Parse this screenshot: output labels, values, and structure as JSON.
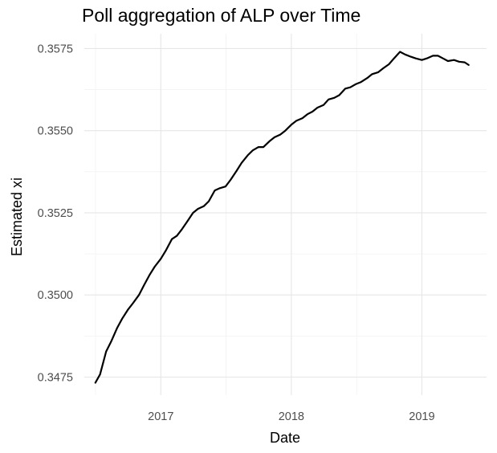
{
  "chart_data": {
    "type": "line",
    "title": "Poll aggregation of ALP over Time",
    "xlabel": "Date",
    "ylabel": "Estimated xi",
    "x_ticks": [
      {
        "label": "2017",
        "value": "2017-01-01"
      },
      {
        "label": "2018",
        "value": "2018-01-01"
      },
      {
        "label": "2019",
        "value": "2019-01-01"
      }
    ],
    "y_ticks": [
      "0.3475",
      "0.3500",
      "0.3525",
      "0.3550",
      "0.3575"
    ],
    "xlim": [
      "2016-06-01",
      "2019-07-01"
    ],
    "ylim": [
      0.34695,
      0.35795
    ],
    "grid": true,
    "series": [
      {
        "color": "#000000",
        "x": [
          "2016-07-02",
          "2016-07-15",
          "2016-08-01",
          "2016-08-15",
          "2016-09-01",
          "2016-09-15",
          "2016-10-01",
          "2016-10-15",
          "2016-11-01",
          "2016-11-15",
          "2016-12-01",
          "2016-12-15",
          "2017-01-01",
          "2017-01-15",
          "2017-02-01",
          "2017-02-15",
          "2017-03-01",
          "2017-03-15",
          "2017-04-01",
          "2017-04-15",
          "2017-05-01",
          "2017-05-15",
          "2017-06-01",
          "2017-06-15",
          "2017-07-01",
          "2017-07-15",
          "2017-08-01",
          "2017-08-15",
          "2017-09-01",
          "2017-09-15",
          "2017-10-01",
          "2017-10-15",
          "2017-11-01",
          "2017-11-15",
          "2017-12-01",
          "2017-12-15",
          "2018-01-01",
          "2018-01-15",
          "2018-02-01",
          "2018-02-15",
          "2018-03-01",
          "2018-03-15",
          "2018-04-01",
          "2018-04-15",
          "2018-05-01",
          "2018-05-15",
          "2018-06-01",
          "2018-06-15",
          "2018-07-01",
          "2018-07-15",
          "2018-08-01",
          "2018-08-15",
          "2018-09-01",
          "2018-09-15",
          "2018-10-01",
          "2018-10-15",
          "2018-11-01",
          "2018-11-15",
          "2018-12-01",
          "2018-12-15",
          "2019-01-01",
          "2019-01-15",
          "2019-02-01",
          "2019-02-15",
          "2019-03-01",
          "2019-03-15",
          "2019-04-01",
          "2019-04-15",
          "2019-05-01",
          "2019-05-12"
        ],
        "values": [
          0.34733,
          0.34758,
          0.34828,
          0.34858,
          0.349,
          0.34928,
          0.34955,
          0.34975,
          0.35,
          0.3503,
          0.35062,
          0.35086,
          0.3511,
          0.35135,
          0.3517,
          0.3518,
          0.352,
          0.35222,
          0.3525,
          0.35262,
          0.3527,
          0.35285,
          0.35318,
          0.35325,
          0.3533,
          0.3535,
          0.35378,
          0.35402,
          0.35425,
          0.3544,
          0.3545,
          0.3545,
          0.35468,
          0.3548,
          0.35488,
          0.355,
          0.35518,
          0.3553,
          0.35538,
          0.3555,
          0.35558,
          0.3557,
          0.35578,
          0.35595,
          0.356,
          0.35608,
          0.35628,
          0.35632,
          0.35642,
          0.35648,
          0.3566,
          0.35672,
          0.35678,
          0.3569,
          0.35702,
          0.3572,
          0.3574,
          0.35732,
          0.35725,
          0.3572,
          0.35715,
          0.3572,
          0.35728,
          0.35728,
          0.3572,
          0.35712,
          0.35715,
          0.3571,
          0.35708,
          0.357
        ]
      }
    ]
  }
}
